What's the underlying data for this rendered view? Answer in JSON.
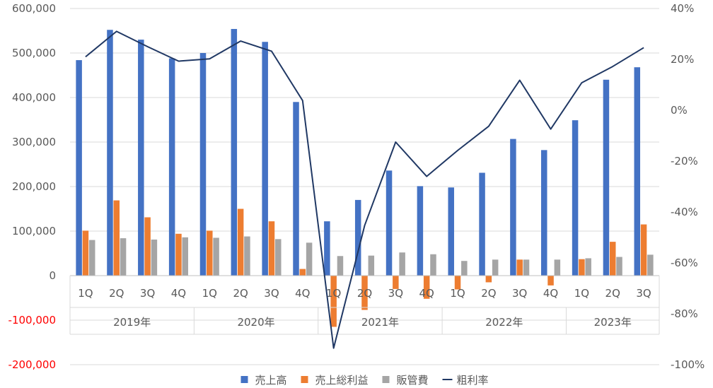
{
  "chart_data": {
    "type": "bar",
    "categories": [
      "1Q",
      "2Q",
      "3Q",
      "4Q",
      "1Q",
      "2Q",
      "3Q",
      "4Q",
      "1Q",
      "2Q",
      "3Q",
      "4Q",
      "1Q",
      "2Q",
      "3Q",
      "4Q",
      "1Q",
      "2Q",
      "3Q"
    ],
    "groups": [
      {
        "label": "2019年",
        "count": 4
      },
      {
        "label": "2020年",
        "count": 4
      },
      {
        "label": "2021年",
        "count": 4
      },
      {
        "label": "2022年",
        "count": 4
      },
      {
        "label": "2023年",
        "count": 3
      }
    ],
    "series": [
      {
        "name": "売上高",
        "type": "bar",
        "axis": "left",
        "color": "#4472C4",
        "values": [
          484000,
          552000,
          530000,
          488000,
          500000,
          554000,
          525000,
          390000,
          122000,
          170000,
          236000,
          201000,
          198000,
          231000,
          307000,
          282000,
          349000,
          440000,
          468000
        ]
      },
      {
        "name": "売上総利益",
        "type": "bar",
        "axis": "left",
        "color": "#ED7D31",
        "values": [
          101000,
          169000,
          131000,
          94000,
          101000,
          150000,
          122000,
          15000,
          -115000,
          -77000,
          -30000,
          -52000,
          -31000,
          -15000,
          36000,
          -22000,
          37000,
          76000,
          115000
        ]
      },
      {
        "name": "販管費",
        "type": "bar",
        "axis": "left",
        "color": "#A5A5A5",
        "values": [
          80000,
          84000,
          81000,
          86000,
          85000,
          88000,
          82000,
          74000,
          44000,
          45000,
          52000,
          48000,
          33000,
          36000,
          36000,
          36000,
          39000,
          42000,
          47000
        ]
      },
      {
        "name": "粗利率",
        "type": "line",
        "axis": "right",
        "color": "#203864",
        "values": [
          21,
          31,
          25,
          19.3,
          20.2,
          27.2,
          23.2,
          3.8,
          -93.5,
          -45.3,
          -12.5,
          -26,
          -15.8,
          -6.3,
          11.8,
          -7.4,
          10.8,
          17.2,
          24.6
        ]
      }
    ],
    "left_axis": {
      "min": -200000,
      "max": 600000,
      "ticks": [
        {
          "value": 600000,
          "label": "600,000"
        },
        {
          "value": 500000,
          "label": "500,000"
        },
        {
          "value": 400000,
          "label": "400,000"
        },
        {
          "value": 300000,
          "label": "300,000"
        },
        {
          "value": 200000,
          "label": "200,000"
        },
        {
          "value": 100000,
          "label": "100,000"
        },
        {
          "value": 0,
          "label": "0"
        },
        {
          "value": -100000,
          "label": "-100,000"
        },
        {
          "value": -200000,
          "label": "-200,000"
        }
      ],
      "negative_label_color": "#FF0000"
    },
    "right_axis": {
      "min": -100,
      "max": 40,
      "ticks": [
        {
          "value": 40,
          "label": "40%"
        },
        {
          "value": 20,
          "label": "20%"
        },
        {
          "value": 0,
          "label": "0%"
        },
        {
          "value": -20,
          "label": "-20%"
        },
        {
          "value": -40,
          "label": "-40%"
        },
        {
          "value": -60,
          "label": "-60%"
        },
        {
          "value": -80,
          "label": "-80%"
        },
        {
          "value": -100,
          "label": "-100%"
        }
      ]
    },
    "title": "",
    "xlabel": "",
    "ylabel": "",
    "grid": true,
    "legend_position": "bottom",
    "legend": [
      {
        "label": "売上高",
        "kind": "bar",
        "color": "#4472C4"
      },
      {
        "label": "売上総利益",
        "kind": "bar",
        "color": "#ED7D31"
      },
      {
        "label": "販管費",
        "kind": "bar",
        "color": "#A5A5A5"
      },
      {
        "label": "粗利率",
        "kind": "line",
        "color": "#203864"
      }
    ]
  }
}
